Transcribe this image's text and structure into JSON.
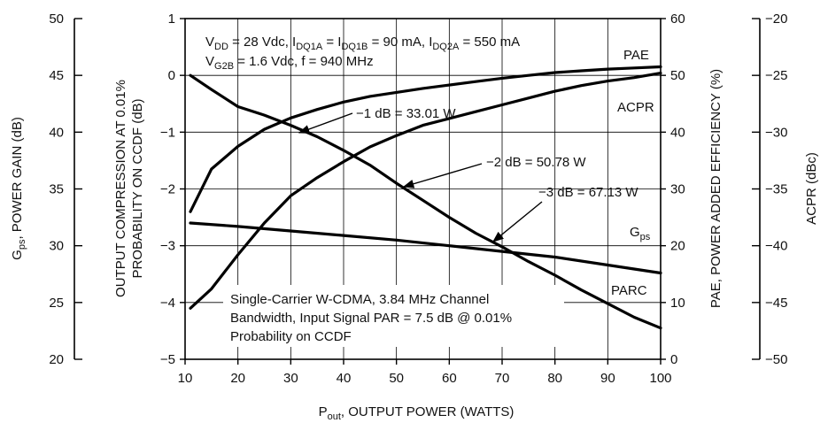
{
  "chart_data": {
    "type": "line",
    "x_axis": {
      "label_main": "P",
      "label_sub": "out",
      "label_rest": ", OUTPUT POWER (WATTS)",
      "range": [
        10,
        100
      ],
      "ticks": [
        "10",
        "20",
        "30",
        "40",
        "50",
        "60",
        "70",
        "80",
        "90",
        "100"
      ]
    },
    "y_axes": {
      "compression": {
        "label_line1": "OUTPUT COMPRESSION AT 0.01%",
        "label_line2": "PROBABILITY ON CCDF (dB)",
        "range": [
          -5,
          1
        ],
        "ticks": [
          "-5",
          "-4",
          "-3",
          "-2",
          "-1",
          "0",
          "1"
        ]
      },
      "gain": {
        "label_main": "G",
        "label_sub": "ps",
        "label_rest": ", POWER GAIN (dB)",
        "range": [
          20,
          50
        ],
        "ticks": [
          "20",
          "25",
          "30",
          "35",
          "40",
          "45",
          "50"
        ]
      },
      "efficiency": {
        "label": "PAE, POWER ADDED EFFICIENCY (%)",
        "range": [
          0,
          60
        ],
        "ticks": [
          "0",
          "10",
          "20",
          "30",
          "40",
          "50",
          "60"
        ]
      },
      "acpr": {
        "label": "ACPR (dBc)",
        "range": [
          -50,
          -20
        ],
        "ticks": [
          "-50",
          "-45",
          "-40",
          "-35",
          "-30",
          "-25",
          "-20"
        ]
      }
    },
    "conditions": {
      "line1": [
        {
          "t": "V",
          "sub": false
        },
        {
          "t": "DD",
          "sub": true
        },
        {
          "t": " = 28 Vdc, I",
          "sub": false
        },
        {
          "t": "DQ1A",
          "sub": true
        },
        {
          "t": " = I",
          "sub": false
        },
        {
          "t": "DQ1B",
          "sub": true
        },
        {
          "t": " = 90 mA, I",
          "sub": false
        },
        {
          "t": "DQ2A",
          "sub": true
        },
        {
          "t": " = 550 mA",
          "sub": false
        }
      ],
      "line2": [
        {
          "t": "V",
          "sub": false
        },
        {
          "t": "G2B",
          "sub": true
        },
        {
          "t": " = 1.6 Vdc, f = 940 MHz",
          "sub": false
        }
      ]
    },
    "signal_note": [
      "Single-Carrier W-CDMA, 3.84 MHz Channel",
      "Bandwidth, Input Signal PAR = 7.5 dB @ 0.01%",
      "Probability on CCDF"
    ],
    "annotations": [
      {
        "text": "-1 dB = 33.01 W",
        "x": 33.01,
        "y": -1
      },
      {
        "text": "-2 dB = 50.78 W",
        "x": 50.78,
        "y": -2
      },
      {
        "text": "-3 dB = 67.13 W",
        "x": 67.13,
        "y": -3
      }
    ],
    "series": [
      {
        "name": "PAE",
        "axis": "efficiency",
        "x": [
          11,
          15,
          20,
          25,
          30,
          35,
          40,
          45,
          50,
          55,
          60,
          65,
          70,
          75,
          80,
          85,
          90,
          95,
          100
        ],
        "y": [
          26,
          33.5,
          37.5,
          40.5,
          42.5,
          44,
          45.3,
          46.3,
          47,
          47.7,
          48.3,
          48.9,
          49.5,
          50,
          50.5,
          50.8,
          51.1,
          51.3,
          51.5
        ]
      },
      {
        "name": "ACPR",
        "axis": "acpr",
        "x": [
          11,
          15,
          20,
          25,
          30,
          35,
          40,
          45,
          50,
          55,
          60,
          65,
          70,
          75,
          80,
          85,
          90,
          95,
          100
        ],
        "y": [
          -45.5,
          -43.8,
          -40.8,
          -38,
          -35.6,
          -34,
          -32.6,
          -31.3,
          -30.3,
          -29.4,
          -28.8,
          -28.2,
          -27.6,
          -27,
          -26.4,
          -25.9,
          -25.5,
          -25.2,
          -24.8
        ]
      },
      {
        "name": "G",
        "name_sub": "ps",
        "axis": "gain",
        "x": [
          11,
          20,
          30,
          40,
          50,
          60,
          70,
          80,
          90,
          100
        ],
        "y": [
          32,
          31.7,
          31.3,
          30.9,
          30.5,
          30,
          29.5,
          29,
          28.3,
          27.6
        ]
      },
      {
        "name": "PARC",
        "axis": "compression",
        "x": [
          11,
          15,
          20,
          25,
          30,
          35,
          40,
          45,
          50,
          55,
          60,
          65,
          70,
          75,
          80,
          85,
          90,
          95,
          100
        ],
        "y": [
          0,
          -0.25,
          -0.55,
          -0.7,
          -0.88,
          -1.08,
          -1.32,
          -1.58,
          -1.9,
          -2.2,
          -2.5,
          -2.78,
          -3.02,
          -3.28,
          -3.52,
          -3.78,
          -4.02,
          -4.26,
          -4.45
        ]
      }
    ],
    "grid": true
  }
}
